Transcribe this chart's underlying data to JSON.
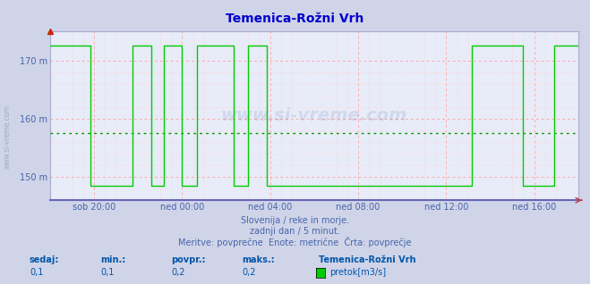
{
  "title": "Temenica-Rožni Vrh",
  "title_color": "#0000cc",
  "bg_color": "#d0d4e8",
  "plot_bg_color": "#e8ecf8",
  "grid_color_major": "#ffaaaa",
  "grid_color_minor": "#ffdddd",
  "xlabel_color": "#4466aa",
  "ylabel_color": "#4466aa",
  "line_color": "#00cc00",
  "avg_line_color": "#009900",
  "avg_value": 157.5,
  "ylim": [
    146,
    175
  ],
  "yticks": [
    150,
    160,
    170
  ],
  "ytick_labels": [
    "150 m",
    "160 m",
    "170 m"
  ],
  "xlim": [
    0,
    288
  ],
  "xtick_positions": [
    24,
    72,
    120,
    168,
    216,
    264
  ],
  "xtick_labels": [
    "sob 20:00",
    "ned 00:00",
    "ned 04:00",
    "ned 08:00",
    "ned 12:00",
    "ned 16:00"
  ],
  "footer_line1": "Slovenija / reke in morje.",
  "footer_line2": "zadnji dan / 5 minut.",
  "footer_line3": "Meritve: povprečne  Enote: metrične  Črta: povprečje",
  "footer_color": "#4466aa",
  "stats_labels": [
    "sedaj:",
    "min.:",
    "povpr.:",
    "maks.:"
  ],
  "stats_values": [
    "0,1",
    "0,1",
    "0,2",
    "0,2"
  ],
  "stats_color": "#0055aa",
  "legend_station": "Temenica-Rožni Vrh",
  "legend_label": "pretok[m3/s]",
  "legend_color": "#00cc00",
  "watermark": "www.si-vreme.com",
  "high_val": 172.5,
  "low_val": 148.5,
  "segments": [
    {
      "start": 0,
      "end": 22,
      "val": 172.5
    },
    {
      "start": 22,
      "end": 45,
      "val": 148.5
    },
    {
      "start": 45,
      "end": 55,
      "val": 172.5
    },
    {
      "start": 55,
      "end": 62,
      "val": 148.5
    },
    {
      "start": 62,
      "end": 72,
      "val": 172.5
    },
    {
      "start": 72,
      "end": 80,
      "val": 148.5
    },
    {
      "start": 80,
      "end": 100,
      "val": 172.5
    },
    {
      "start": 100,
      "end": 108,
      "val": 148.5
    },
    {
      "start": 108,
      "end": 118,
      "val": 172.5
    },
    {
      "start": 118,
      "end": 230,
      "val": 148.5
    },
    {
      "start": 230,
      "end": 258,
      "val": 172.5
    },
    {
      "start": 258,
      "end": 275,
      "val": 148.5
    },
    {
      "start": 275,
      "end": 288,
      "val": 172.5
    }
  ],
  "minor_vgrid_offsets": [
    -12,
    -6,
    6,
    12
  ],
  "minor_hgrid": [
    152,
    154,
    156,
    158,
    162,
    164,
    166,
    168
  ]
}
